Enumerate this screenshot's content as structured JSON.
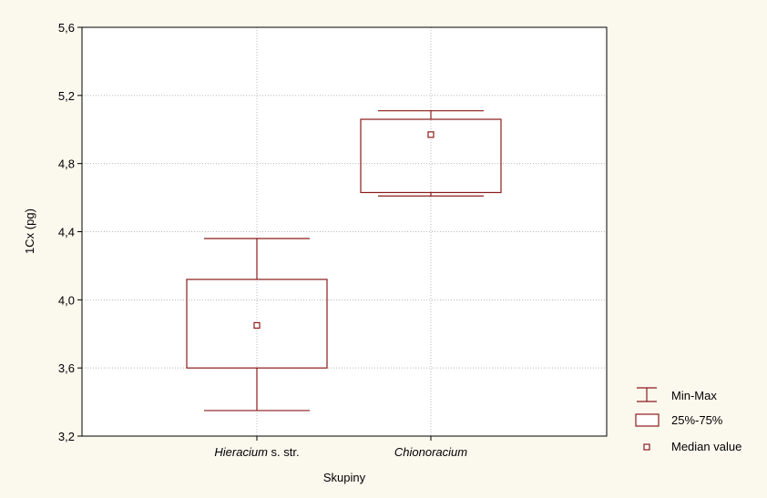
{
  "chart_data": {
    "type": "box",
    "xlabel": "Skupiny",
    "ylabel": "1Cx (pg)",
    "ylim": [
      3.2,
      5.6
    ],
    "y_ticks": [
      3.2,
      3.6,
      4.0,
      4.4,
      4.8,
      5.2,
      5.6
    ],
    "y_tick_labels": [
      "3,2",
      "3,6",
      "4,0",
      "4,4",
      "4,8",
      "5,2",
      "5,6"
    ],
    "grid": true,
    "legend_position": "bottom-right",
    "categories": [
      {
        "label_italic": "Hieracium",
        "label_plain": " s. str."
      },
      {
        "label_italic": "Chionoracium",
        "label_plain": ""
      }
    ],
    "boxes": [
      {
        "min": 3.35,
        "q1": 3.6,
        "median": 3.85,
        "q3": 4.12,
        "max": 4.36
      },
      {
        "min": 4.61,
        "q1": 4.63,
        "median": 4.97,
        "q3": 5.06,
        "max": 5.11
      }
    ],
    "legend": [
      {
        "symbol": "whisker",
        "label": "Min-Max"
      },
      {
        "symbol": "box",
        "label": "25%-75%"
      },
      {
        "symbol": "median",
        "label": "Median value"
      }
    ],
    "colors": {
      "series": "#8b1a1a",
      "grid": "#b8b8b8",
      "plot_background": "#ffffff",
      "page_background": "#fbf8ee"
    }
  }
}
